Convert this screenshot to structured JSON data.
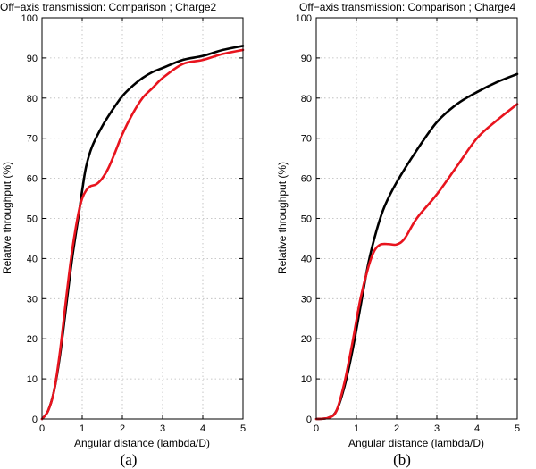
{
  "chart_data": [
    {
      "type": "line",
      "panel_label": "(a)",
      "title": "Off−axis transmission: Comparison ; Charge2",
      "xlabel": "Angular distance (lambda/D)",
      "ylabel": "Relative throughput (%)",
      "xlim": [
        0,
        5
      ],
      "ylim": [
        0,
        100
      ],
      "xticks": [
        0,
        1,
        2,
        3,
        4,
        5
      ],
      "yticks": [
        0,
        10,
        20,
        30,
        40,
        50,
        60,
        70,
        80,
        90,
        100
      ],
      "grid": true,
      "series": [
        {
          "name": "black",
          "color": "#000000",
          "x": [
            0,
            0.15,
            0.3,
            0.45,
            0.6,
            0.75,
            0.9,
            1.0,
            1.1,
            1.25,
            1.5,
            1.75,
            2.0,
            2.25,
            2.5,
            2.75,
            3.0,
            3.5,
            4.0,
            4.5,
            5.0
          ],
          "y": [
            0,
            2,
            7,
            16,
            28,
            40,
            50,
            57,
            63,
            68,
            73,
            77,
            80.5,
            83,
            85,
            86.5,
            87.5,
            89.5,
            90.5,
            92,
            93
          ]
        },
        {
          "name": "red",
          "color": "#e8141e",
          "x": [
            0,
            0.15,
            0.3,
            0.45,
            0.6,
            0.75,
            0.9,
            1.0,
            1.1,
            1.2,
            1.35,
            1.5,
            1.65,
            1.8,
            2.0,
            2.25,
            2.5,
            2.75,
            3.0,
            3.5,
            4.0,
            4.5,
            5.0
          ],
          "y": [
            0,
            2,
            7,
            17,
            30,
            42,
            51,
            55,
            57,
            58,
            58.5,
            60,
            62.5,
            66,
            71,
            76,
            80,
            82.5,
            85,
            88.5,
            89.5,
            91,
            92
          ]
        }
      ]
    },
    {
      "type": "line",
      "panel_label": "(b)",
      "title": "Off−axis transmission: Comparison ; Charge4",
      "xlabel": "Angular distance (lambda/D)",
      "ylabel": "Relative throughput (%)",
      "xlim": [
        0,
        5
      ],
      "ylim": [
        0,
        100
      ],
      "xticks": [
        0,
        1,
        2,
        3,
        4,
        5
      ],
      "yticks": [
        0,
        10,
        20,
        30,
        40,
        50,
        60,
        70,
        80,
        90,
        100
      ],
      "grid": true,
      "series": [
        {
          "name": "black",
          "color": "#000000",
          "x": [
            0,
            0.3,
            0.5,
            0.7,
            0.9,
            1.1,
            1.3,
            1.5,
            1.7,
            2.0,
            2.5,
            3.0,
            3.5,
            4.0,
            4.5,
            5.0
          ],
          "y": [
            0,
            0.3,
            2,
            8,
            17,
            28,
            39,
            47,
            53,
            59,
            67,
            74,
            78.5,
            81.5,
            84,
            86
          ]
        },
        {
          "name": "red",
          "color": "#e8141e",
          "x": [
            0,
            0.3,
            0.5,
            0.7,
            0.9,
            1.1,
            1.3,
            1.45,
            1.6,
            1.8,
            2.0,
            2.2,
            2.5,
            3.0,
            3.5,
            4.0,
            4.5,
            5.0
          ],
          "y": [
            0,
            0.3,
            2,
            9,
            19,
            30,
            38,
            42,
            43.5,
            43.6,
            43.5,
            45,
            50,
            56,
            63,
            70,
            74.5,
            78.5
          ]
        }
      ]
    }
  ]
}
